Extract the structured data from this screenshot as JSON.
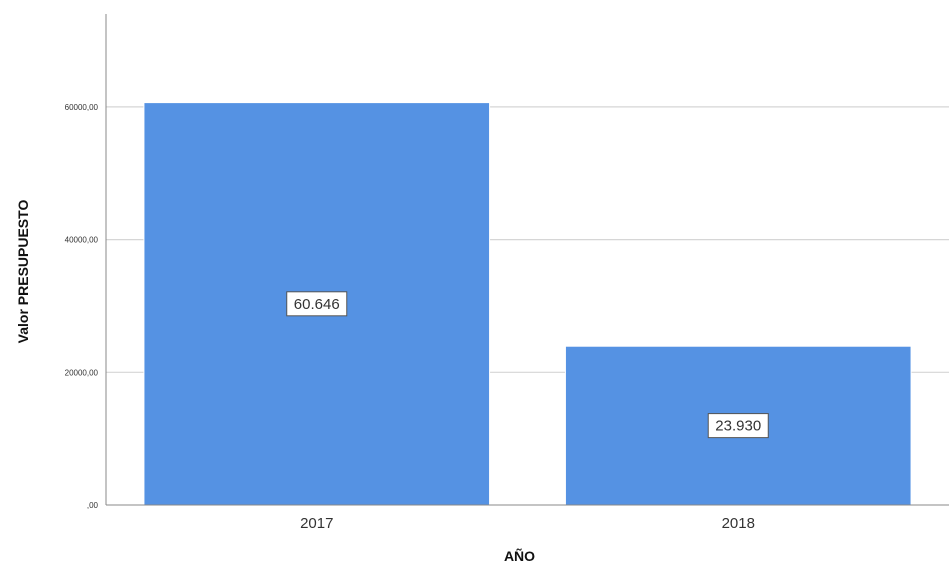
{
  "chart_data": {
    "type": "bar",
    "categories": [
      "2017",
      "2018"
    ],
    "values": [
      60646,
      23930
    ],
    "data_labels": [
      "60.646",
      "23.930"
    ],
    "title": "",
    "xlabel": "AÑO",
    "ylabel": "Valor PRESUPUESTO",
    "ylim": [
      0,
      74000
    ],
    "yticks": [
      0,
      20000,
      40000,
      60000
    ],
    "ytick_labels": [
      ",00",
      "20000,00",
      "40000,00",
      "60000,00"
    ],
    "grid": true,
    "legend": "none",
    "bar_color": "#5592e3"
  }
}
